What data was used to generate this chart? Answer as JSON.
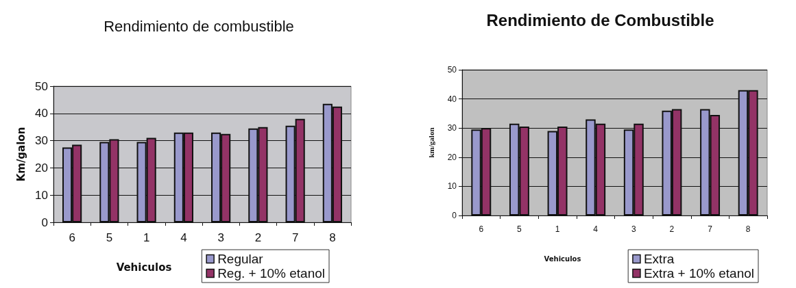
{
  "chart_data": [
    {
      "type": "bar",
      "title": "Rendimiento de combustible",
      "xlabel": "Vehiculos",
      "ylabel": "Km/galon",
      "categories": [
        "6",
        "5",
        "1",
        "4",
        "3",
        "2",
        "7",
        "8"
      ],
      "series": [
        {
          "name": "Regular",
          "color": "#9999cc",
          "values": [
            27.5,
            29.5,
            29.5,
            33,
            33,
            34.5,
            35.5,
            43.5
          ]
        },
        {
          "name": "Reg. + 10% etanol",
          "color": "#933366",
          "values": [
            28.5,
            30.5,
            31,
            33,
            32.5,
            35,
            38,
            42.5
          ]
        }
      ],
      "ylim": [
        0,
        50
      ],
      "yticks": [
        0,
        10,
        20,
        30,
        40,
        50
      ],
      "grid": "y",
      "legend": "bottom right"
    },
    {
      "type": "bar",
      "title": "Rendimiento de Combustible",
      "xlabel": "Vehiculos",
      "ylabel": "km/galon",
      "categories": [
        "6",
        "5",
        "1",
        "4",
        "3",
        "2",
        "7",
        "8"
      ],
      "series": [
        {
          "name": "Extra",
          "color": "#9999cc",
          "values": [
            29.5,
            31.5,
            29,
            33,
            29.5,
            36,
            36.5,
            43
          ]
        },
        {
          "name": "Extra + 10% etanol",
          "color": "#933366",
          "values": [
            30,
            30.5,
            30.5,
            31.5,
            31.5,
            36.5,
            34.5,
            43
          ]
        }
      ],
      "ylim": [
        0,
        50
      ],
      "yticks": [
        0,
        10,
        20,
        30,
        40,
        50
      ],
      "grid": "y",
      "legend": "bottom right"
    }
  ]
}
